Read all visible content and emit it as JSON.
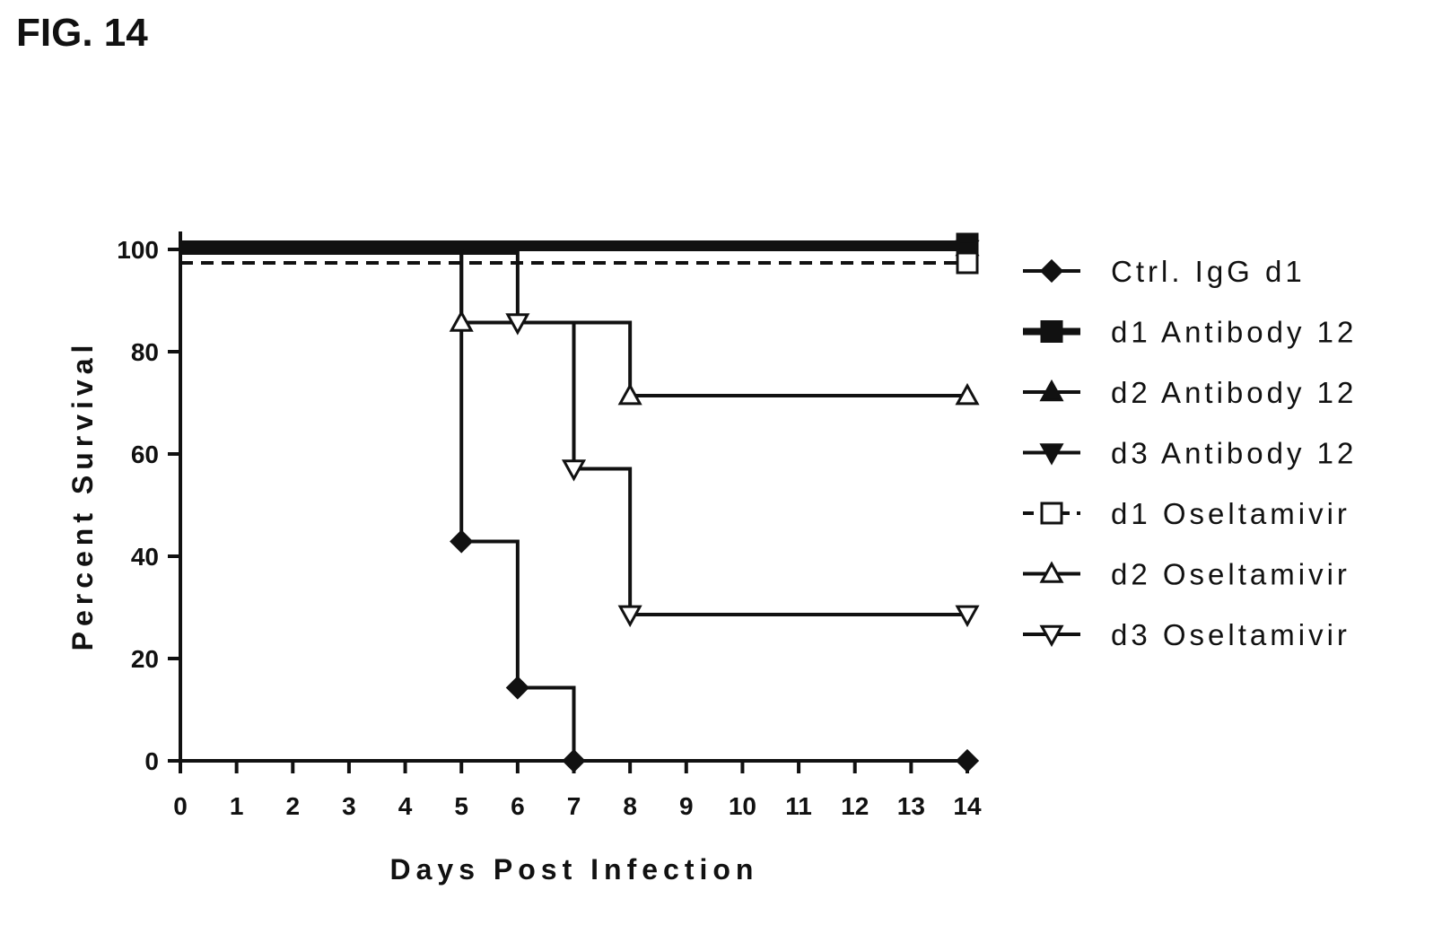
{
  "figure_label": "FIG. 14",
  "chart_data": {
    "type": "line",
    "xlabel": "Days Post Infection",
    "ylabel": "Percent Survival",
    "xlim": [
      0,
      14
    ],
    "ylim": [
      0,
      100
    ],
    "x_ticks": [
      "0",
      "1",
      "2",
      "3",
      "4",
      "5",
      "6",
      "7",
      "8",
      "9",
      "10",
      "11",
      "12",
      "13",
      "14"
    ],
    "y_ticks": [
      "0",
      "20",
      "40",
      "60",
      "80",
      "100"
    ],
    "grid": false,
    "legend_position": "right",
    "series": [
      {
        "name": "Ctrl. IgG d1",
        "marker": "diamond-filled",
        "dash": false,
        "x": [
          0,
          5,
          6,
          7,
          14
        ],
        "y": [
          100,
          42.9,
          14.3,
          0,
          0
        ]
      },
      {
        "name": "d1 Antibody 12",
        "marker": "square-filled",
        "dash": false,
        "x": [
          0,
          14
        ],
        "y": [
          100,
          100
        ]
      },
      {
        "name": "d2 Antibody 12",
        "marker": "triangle-up-filled",
        "dash": false,
        "x": [
          0,
          14
        ],
        "y": [
          100,
          100
        ]
      },
      {
        "name": "d3 Antibody 12",
        "marker": "triangle-down-filled",
        "dash": false,
        "x": [
          0,
          14
        ],
        "y": [
          100,
          100
        ]
      },
      {
        "name": "d1 Oseltamivir",
        "marker": "square-open",
        "dash": true,
        "x": [
          0,
          14
        ],
        "y": [
          100,
          100
        ]
      },
      {
        "name": "d2 Oseltamivir",
        "marker": "triangle-up-open",
        "dash": false,
        "x": [
          0,
          5,
          8,
          14
        ],
        "y": [
          100,
          85.7,
          71.4,
          71.4
        ]
      },
      {
        "name": "d3 Oseltamivir",
        "marker": "triangle-down-open",
        "dash": false,
        "x": [
          0,
          6,
          7,
          8,
          14
        ],
        "y": [
          100,
          85.7,
          57.1,
          28.6,
          28.6
        ]
      }
    ]
  }
}
